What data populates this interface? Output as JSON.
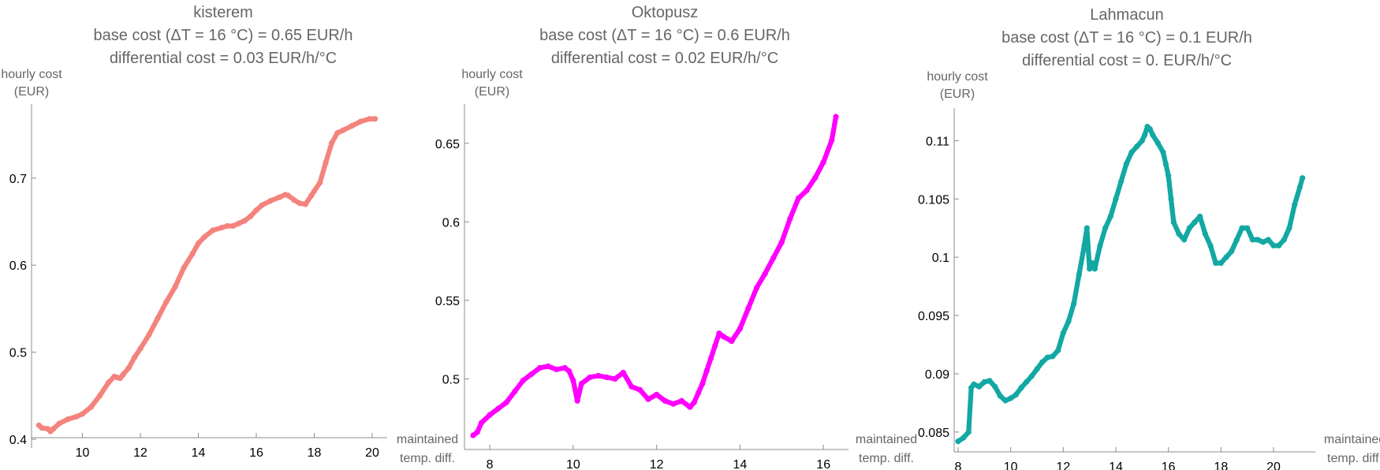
{
  "chart_data": [
    {
      "type": "scatter",
      "title_lines": [
        "kisterem",
        "base cost (ΔT = 16 °C) = 0.65 EUR/h",
        "differential cost = 0.03 EUR/h/°C"
      ],
      "ylabel_lines": [
        "hourly cost",
        "(EUR)"
      ],
      "xlabel_lines": [
        "maintained",
        "temp. diff."
      ],
      "color": "#f4837d",
      "xlim": [
        8.3,
        20.3
      ],
      "ylim": [
        0.39,
        0.785
      ],
      "xticks": [
        10,
        12,
        14,
        16,
        18,
        20
      ],
      "yticks": [
        0.4,
        0.5,
        0.6,
        0.7
      ],
      "series": [
        {
          "x": [
            8.5,
            8.6,
            8.8,
            8.9,
            9.0,
            9.2,
            9.5,
            9.8,
            10.0,
            10.3,
            10.6,
            10.9,
            11.1,
            11.2,
            11.3,
            11.4,
            11.6,
            11.8,
            12.0,
            12.3,
            12.6,
            12.9,
            13.2,
            13.5,
            13.8,
            14.0,
            14.2,
            14.5,
            14.8,
            15.0,
            15.2,
            15.4,
            15.6,
            15.8,
            16.0,
            16.2,
            16.5,
            16.8,
            17.0,
            17.1,
            17.3,
            17.5,
            17.7,
            17.9,
            18.0,
            18.2,
            18.4,
            18.6,
            18.8,
            19.0,
            19.3,
            19.6,
            19.9,
            20.1
          ],
          "y": [
            0.416,
            0.413,
            0.412,
            0.409,
            0.412,
            0.418,
            0.423,
            0.426,
            0.429,
            0.437,
            0.45,
            0.465,
            0.472,
            0.471,
            0.47,
            0.474,
            0.482,
            0.494,
            0.504,
            0.52,
            0.539,
            0.558,
            0.575,
            0.597,
            0.613,
            0.625,
            0.632,
            0.64,
            0.643,
            0.645,
            0.645,
            0.648,
            0.651,
            0.656,
            0.663,
            0.669,
            0.674,
            0.678,
            0.681,
            0.68,
            0.675,
            0.671,
            0.67,
            0.68,
            0.685,
            0.695,
            0.718,
            0.74,
            0.752,
            0.755,
            0.76,
            0.765,
            0.768,
            0.768
          ]
        }
      ]
    },
    {
      "type": "scatter",
      "title_lines": [
        "Oktopusz",
        "base cost (ΔT = 16 °C) = 0.6 EUR/h",
        "differential cost = 0.02 EUR/h/°C"
      ],
      "ylabel_lines": [
        "hourly cost",
        "(EUR)"
      ],
      "xlabel_lines": [
        "maintained",
        "temp. diff."
      ],
      "color": "#ff00ff",
      "xlim": [
        7.45,
        16.45
      ],
      "ylim": [
        0.455,
        0.675
      ],
      "xticks": [
        8,
        10,
        12,
        14,
        16
      ],
      "yticks": [
        0.5,
        0.55,
        0.6,
        0.65
      ],
      "series": [
        {
          "x": [
            7.6,
            7.7,
            7.8,
            8.0,
            8.2,
            8.4,
            8.6,
            8.8,
            9.0,
            9.2,
            9.4,
            9.6,
            9.8,
            9.9,
            10.0,
            10.1,
            10.2,
            10.4,
            10.6,
            10.8,
            11.0,
            11.2,
            11.4,
            11.6,
            11.8,
            12.0,
            12.2,
            12.4,
            12.6,
            12.8,
            12.9,
            13.0,
            13.1,
            13.2,
            13.3,
            13.4,
            13.5,
            13.6,
            13.8,
            14.0,
            14.2,
            14.4,
            14.6,
            14.8,
            15.0,
            15.2,
            15.4,
            15.6,
            15.8,
            16.0,
            16.2,
            16.3
          ],
          "y": [
            0.464,
            0.466,
            0.472,
            0.477,
            0.481,
            0.485,
            0.492,
            0.499,
            0.503,
            0.507,
            0.508,
            0.506,
            0.507,
            0.505,
            0.499,
            0.486,
            0.497,
            0.501,
            0.502,
            0.501,
            0.5,
            0.504,
            0.495,
            0.493,
            0.487,
            0.49,
            0.486,
            0.484,
            0.486,
            0.482,
            0.485,
            0.491,
            0.497,
            0.505,
            0.513,
            0.521,
            0.529,
            0.527,
            0.524,
            0.532,
            0.545,
            0.558,
            0.567,
            0.577,
            0.587,
            0.602,
            0.615,
            0.62,
            0.628,
            0.638,
            0.652,
            0.667
          ]
        }
      ]
    },
    {
      "type": "scatter",
      "title_lines": [
        "Lahmacun",
        "base cost (ΔT = 16 °C) = 0.1 EUR/h",
        "differential cost = 0. EUR/h/°C"
      ],
      "ylabel_lines": [
        "hourly cost",
        "(EUR)"
      ],
      "xlabel_lines": [
        "maintained",
        "temp. diff."
      ],
      "color": "#13a8a3",
      "xlim": [
        7.85,
        21.35
      ],
      "ylim": [
        0.0833,
        0.1128
      ],
      "xticks": [
        8,
        10,
        12,
        14,
        16,
        18,
        20
      ],
      "yticks": [
        0.085,
        0.09,
        0.095,
        0.1,
        0.105,
        0.11
      ],
      "series": [
        {
          "x": [
            8.0,
            8.2,
            8.4,
            8.5,
            8.6,
            8.8,
            9.0,
            9.2,
            9.4,
            9.6,
            9.8,
            10.0,
            10.2,
            10.4,
            10.6,
            10.8,
            11.0,
            11.2,
            11.4,
            11.6,
            11.8,
            12.0,
            12.2,
            12.4,
            12.6,
            12.8,
            12.9,
            13.0,
            13.1,
            13.2,
            13.4,
            13.6,
            13.8,
            14.0,
            14.2,
            14.4,
            14.6,
            14.8,
            15.0,
            15.1,
            15.2,
            15.3,
            15.4,
            15.6,
            15.8,
            15.9,
            16.0,
            16.1,
            16.2,
            16.4,
            16.6,
            16.8,
            17.0,
            17.2,
            17.4,
            17.6,
            17.8,
            18.0,
            18.2,
            18.4,
            18.6,
            18.8,
            19.0,
            19.2,
            19.4,
            19.6,
            19.8,
            20.0,
            20.2,
            20.4,
            20.6,
            20.8,
            21.0,
            21.1
          ],
          "y": [
            0.0842,
            0.0845,
            0.085,
            0.0888,
            0.0891,
            0.0889,
            0.0893,
            0.0894,
            0.0889,
            0.0881,
            0.0877,
            0.0879,
            0.0882,
            0.0888,
            0.0893,
            0.0898,
            0.0904,
            0.091,
            0.0914,
            0.0915,
            0.092,
            0.0935,
            0.0945,
            0.096,
            0.0985,
            0.101,
            0.1025,
            0.099,
            0.0995,
            0.099,
            0.101,
            0.1025,
            0.1035,
            0.105,
            0.1065,
            0.108,
            0.109,
            0.1095,
            0.11,
            0.1105,
            0.1112,
            0.111,
            0.1105,
            0.1098,
            0.109,
            0.108,
            0.107,
            0.105,
            0.103,
            0.102,
            0.1015,
            0.1025,
            0.103,
            0.1035,
            0.102,
            0.101,
            0.0995,
            0.0995,
            0.1,
            0.1005,
            0.1015,
            0.1025,
            0.1025,
            0.1015,
            0.1015,
            0.1013,
            0.1015,
            0.101,
            0.101,
            0.1015,
            0.1025,
            0.1045,
            0.106,
            0.1068
          ]
        }
      ]
    }
  ]
}
